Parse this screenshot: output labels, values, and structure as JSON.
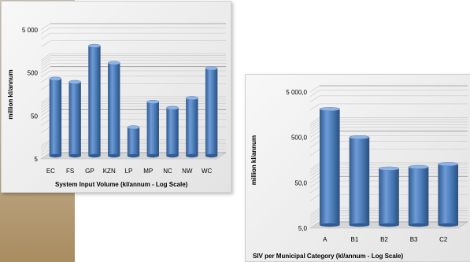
{
  "chart_data": [
    {
      "type": "bar",
      "xlabel": "System Input Volume  (kl/annum - Log Scale)",
      "ylabel": "million kl/annum",
      "scale": "log",
      "ylim": [
        5,
        5000
      ],
      "ytick_labels": [
        "5",
        "50",
        "500",
        "5 000"
      ],
      "ytick_values": [
        5,
        50,
        500,
        5000
      ],
      "categories": [
        "EC",
        "FS",
        "GP",
        "KZN",
        "LP",
        "MP",
        "NC",
        "NW",
        "WC"
      ],
      "values": [
        310,
        260,
        1800,
        720,
        23,
        90,
        65,
        110,
        540
      ],
      "color": "#4f81bd",
      "grid": true
    },
    {
      "type": "bar",
      "xlabel": "SIV per Municipal  Category (kl/annum - Log Scale)",
      "ylabel": "million kl/annum",
      "scale": "log",
      "ylim": [
        5,
        5000
      ],
      "ytick_labels": [
        "5,0",
        "50,0",
        "500,0",
        "5 000,0"
      ],
      "ytick_values": [
        5,
        50,
        500,
        5000
      ],
      "categories": [
        "A",
        "B1",
        "B2",
        "B3",
        "C2"
      ],
      "values": [
        1800,
        430,
        88,
        95,
        110
      ],
      "color": "#4f81bd",
      "grid": true
    }
  ]
}
